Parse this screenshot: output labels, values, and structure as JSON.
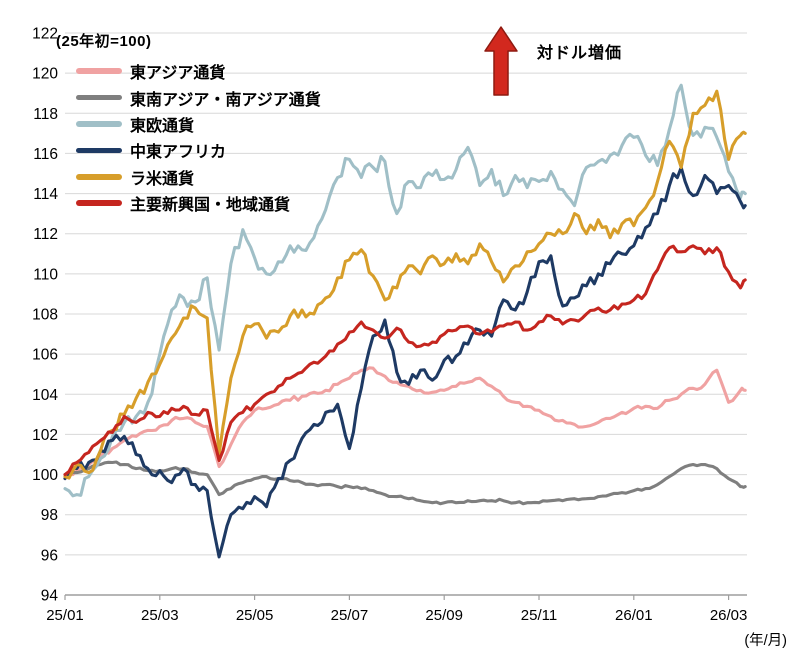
{
  "chart_data": {
    "type": "line",
    "title": "",
    "note": "(25年初=100)",
    "annotation": {
      "text": "対ドル増価",
      "arrow_color": "#d2281e",
      "arrow_border": "#8e1a10"
    },
    "legend_position": "top-left",
    "grid": "horizontal",
    "colors": {
      "gridline": "#d8d8d8",
      "axis": "#9e9e9e",
      "text": "#000000",
      "background": "#ffffff"
    },
    "x_axis": {
      "tick_labels": [
        "25/01",
        "25/03",
        "25/05",
        "25/07",
        "25/09",
        "25/11",
        "26/01",
        "26/03"
      ],
      "tick_months": [
        0,
        2,
        4,
        6,
        8,
        10,
        12,
        14
      ],
      "unit_label": "(年/月)"
    },
    "y_axis": {
      "min": 94,
      "max": 122,
      "step": 2
    },
    "x_waypoint_months": [
      0,
      0.25,
      0.5,
      0.75,
      1,
      1.25,
      1.5,
      1.75,
      2,
      2.25,
      2.5,
      2.75,
      3,
      3.25,
      3.5,
      3.75,
      4,
      4.25,
      4.5,
      4.75,
      5,
      5.25,
      5.5,
      5.75,
      6,
      6.25,
      6.5,
      6.75,
      7,
      7.25,
      7.5,
      7.75,
      8,
      8.25,
      8.5,
      8.75,
      9,
      9.25,
      9.5,
      9.75,
      10,
      10.25,
      10.5,
      10.75,
      11,
      11.25,
      11.5,
      11.75,
      12,
      12.25,
      12.5,
      12.75,
      13,
      13.25,
      13.5,
      13.75,
      14,
      14.25,
      14.35
    ],
    "series": [
      {
        "key": "east-asia",
        "name": "東アジア通貨",
        "color": "#f0a2a2",
        "noise": 0.13,
        "values": [
          99.8,
          100.2,
          100.5,
          100.9,
          101.3,
          101.7,
          101.9,
          102.2,
          102.4,
          102.7,
          102.8,
          102.6,
          102.4,
          100.4,
          101.5,
          102.6,
          103.2,
          103.3,
          103.5,
          103.7,
          103.9,
          104.1,
          104.2,
          104.5,
          104.8,
          105.2,
          105.3,
          104.9,
          104.6,
          104.4,
          104.2,
          104.1,
          104.2,
          104.4,
          104.6,
          104.8,
          104.4,
          103.9,
          103.6,
          103.4,
          103.2,
          102.9,
          102.7,
          102.5,
          102.4,
          102.6,
          102.8,
          103.1,
          103.3,
          103.4,
          103.3,
          103.7,
          104.0,
          104.3,
          104.5,
          105.2,
          103.6,
          104.2,
          104.2
        ]
      },
      {
        "key": "se-south-asia",
        "name": "東南アジア・南アジア通貨",
        "color": "#7f7f7f",
        "noise": 0.07,
        "values": [
          100.0,
          100.1,
          100.3,
          100.5,
          100.6,
          100.5,
          100.3,
          100.2,
          100.2,
          100.3,
          100.3,
          100.1,
          100.0,
          99.0,
          99.3,
          99.6,
          99.8,
          99.9,
          99.8,
          99.7,
          99.6,
          99.5,
          99.5,
          99.4,
          99.4,
          99.3,
          99.2,
          99.0,
          98.9,
          98.8,
          98.7,
          98.6,
          98.6,
          98.6,
          98.7,
          98.7,
          98.7,
          98.7,
          98.6,
          98.6,
          98.6,
          98.7,
          98.7,
          98.8,
          98.8,
          98.9,
          99.0,
          99.1,
          99.2,
          99.3,
          99.5,
          99.9,
          100.3,
          100.5,
          100.5,
          100.3,
          99.8,
          99.4,
          99.4
        ]
      },
      {
        "key": "east-europe",
        "name": "東欧通貨",
        "color": "#a0bfc7",
        "noise": 0.38,
        "values": [
          99.3,
          99.0,
          99.9,
          100.8,
          101.9,
          102.6,
          102.9,
          103.6,
          106.0,
          108.2,
          108.8,
          108.6,
          109.8,
          106.2,
          110.5,
          112.2,
          110.8,
          110.0,
          110.6,
          111.4,
          111.2,
          111.8,
          113.2,
          114.8,
          115.7,
          114.8,
          115.3,
          115.6,
          113.0,
          114.6,
          114.3,
          114.9,
          114.7,
          115.2,
          116.3,
          114.4,
          115.2,
          113.9,
          114.9,
          114.3,
          114.6,
          115.1,
          114.2,
          113.4,
          115.3,
          115.6,
          115.9,
          116.4,
          116.8,
          115.9,
          115.4,
          117.2,
          119.4,
          116.9,
          117.3,
          116.8,
          115.1,
          113.8,
          114.0
        ]
      },
      {
        "key": "mideast-africa",
        "name": "中東アフリカ",
        "color": "#1e3a64",
        "noise": 0.3,
        "values": [
          99.8,
          100.3,
          100.6,
          101.2,
          101.7,
          101.9,
          101.0,
          100.3,
          100.2,
          99.6,
          100.3,
          99.5,
          99.2,
          95.9,
          98.0,
          98.3,
          98.9,
          98.4,
          99.8,
          100.7,
          101.8,
          102.5,
          103.1,
          103.5,
          101.3,
          104.3,
          106.9,
          107.7,
          105.1,
          104.5,
          105.2,
          104.7,
          105.7,
          105.9,
          106.5,
          107.2,
          106.9,
          108.7,
          108.2,
          109.1,
          110.6,
          110.9,
          108.4,
          108.8,
          109.4,
          110.0,
          110.5,
          111.0,
          111.4,
          112.3,
          113.0,
          114.4,
          115.3,
          113.9,
          114.9,
          114.0,
          114.4,
          113.6,
          113.4
        ]
      },
      {
        "key": "latam",
        "name": "ラ米通貨",
        "color": "#d79e2a",
        "noise": 0.32,
        "values": [
          99.9,
          100.5,
          100.1,
          101.2,
          102.2,
          103.0,
          103.8,
          104.6,
          105.5,
          106.8,
          107.8,
          108.3,
          107.8,
          101.0,
          104.8,
          106.9,
          107.5,
          106.8,
          107.1,
          107.9,
          108.2,
          108.0,
          108.8,
          109.8,
          110.7,
          111.2,
          109.9,
          108.7,
          109.3,
          110.4,
          110.0,
          110.9,
          110.5,
          111.0,
          110.5,
          111.5,
          110.6,
          109.6,
          110.4,
          111.1,
          111.5,
          112.0,
          112.0,
          113.0,
          112.0,
          112.7,
          111.8,
          112.5,
          112.4,
          113.3,
          114.6,
          116.6,
          115.3,
          118.0,
          118.4,
          119.1,
          115.7,
          116.9,
          117.0
        ]
      },
      {
        "key": "major-em",
        "name": "主要新興国・地域通貨",
        "color": "#c5261f",
        "noise": 0.16,
        "values": [
          100.0,
          100.6,
          101.1,
          101.7,
          102.1,
          102.9,
          102.6,
          103.1,
          102.9,
          103.3,
          103.4,
          103.0,
          103.2,
          100.7,
          102.6,
          103.1,
          103.5,
          104.0,
          104.4,
          104.8,
          105.1,
          105.6,
          105.9,
          106.5,
          107.1,
          107.6,
          107.2,
          106.8,
          107.3,
          106.6,
          106.4,
          106.6,
          107.0,
          107.2,
          107.4,
          107.0,
          107.1,
          107.4,
          107.6,
          107.2,
          107.6,
          107.9,
          107.5,
          107.7,
          108.0,
          108.3,
          108.2,
          108.5,
          108.7,
          109.0,
          110.2,
          111.3,
          111.1,
          111.4,
          111.0,
          111.3,
          110.1,
          109.3,
          109.7
        ]
      }
    ]
  }
}
